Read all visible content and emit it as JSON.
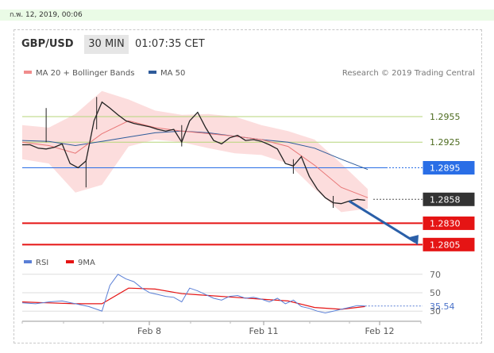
{
  "date_bar": "ก.พ. 12, 2019, 00:06",
  "header": {
    "symbol": "GBP/USD",
    "timeframe": "30 MIN",
    "time": "01:07:35 CET"
  },
  "legend": [
    {
      "label": "MA 20 + Bollinger Bands",
      "color": "#f08c8c"
    },
    {
      "label": "MA 50",
      "color": "#2e5b9a"
    }
  ],
  "credit": "Research © 2019 Trading Central",
  "chart_data": [
    {
      "type": "line",
      "title": "GBP/USD",
      "x_ticks": [
        "Feb 8",
        "Feb 11",
        "Feb 12"
      ],
      "series": [
        {
          "name": "price",
          "x": [
            0,
            3,
            6,
            9,
            12,
            15,
            18,
            21,
            24,
            27,
            30,
            33,
            36,
            39,
            42,
            45,
            48,
            51,
            54,
            57,
            60,
            63,
            66,
            69,
            72,
            75,
            78,
            81,
            84,
            87,
            90,
            93,
            96,
            99,
            102,
            105,
            108,
            111,
            114,
            117,
            120,
            123,
            126,
            129,
            132,
            135,
            138,
            141,
            144,
            147,
            150
          ],
          "y": [
            1.2922,
            1.2922,
            1.2918,
            1.2917,
            1.2919,
            1.2923,
            1.29,
            1.2895,
            1.2903,
            1.295,
            1.2972,
            1.2965,
            1.2957,
            1.295,
            1.2947,
            1.2945,
            1.2943,
            1.294,
            1.2938,
            1.294,
            1.2925,
            1.295,
            1.296,
            1.2942,
            1.2927,
            1.2923,
            1.293,
            1.2933,
            1.2927,
            1.2928,
            1.2926,
            1.2922,
            1.2917,
            1.29,
            1.2897,
            1.2908,
            1.2885,
            1.287,
            1.286,
            1.2854,
            1.2853,
            1.2856,
            1.2858,
            1.2857,
            1.2858,
            1.2858,
            1.2858,
            1.2858,
            1.2858,
            1.2858,
            1.2858
          ]
        },
        {
          "name": "MA 20",
          "x": [
            0,
            10,
            20,
            30,
            40,
            50,
            60,
            70,
            80,
            90,
            100,
            110,
            120,
            130
          ],
          "y": [
            1.2925,
            1.2921,
            1.2912,
            1.2935,
            1.295,
            1.2942,
            1.2938,
            1.2935,
            1.2932,
            1.2928,
            1.292,
            1.2898,
            1.2872,
            1.286
          ]
        },
        {
          "name": "MA 50",
          "x": [
            0,
            10,
            20,
            30,
            40,
            50,
            60,
            70,
            80,
            90,
            100,
            110,
            120,
            130
          ],
          "y": [
            1.2927,
            1.2926,
            1.2921,
            1.2926,
            1.2931,
            1.2936,
            1.2938,
            1.2936,
            1.2932,
            1.2928,
            1.2925,
            1.2918,
            1.2905,
            1.2893
          ]
        },
        {
          "name": "Bollinger upper",
          "x": [
            0,
            10,
            20,
            30,
            40,
            50,
            60,
            70,
            80,
            90,
            100,
            110,
            120,
            130
          ],
          "y": [
            1.2945,
            1.2942,
            1.2958,
            1.2985,
            1.2975,
            1.2962,
            1.2957,
            1.2958,
            1.2955,
            1.2945,
            1.2938,
            1.2928,
            1.29,
            1.287
          ]
        },
        {
          "name": "Bollinger lower",
          "x": [
            0,
            10,
            20,
            30,
            40,
            50,
            60,
            70,
            80,
            90,
            100,
            110,
            120,
            130
          ],
          "y": [
            1.2905,
            1.29,
            1.2866,
            1.2875,
            1.292,
            1.2928,
            1.2925,
            1.2918,
            1.2912,
            1.291,
            1.29,
            1.287,
            1.2843,
            1.2847
          ]
        }
      ],
      "levels": [
        {
          "value": 1.2955,
          "label": "1.2955",
          "color": "#b5d67a"
        },
        {
          "value": 1.2925,
          "label": "1.2925",
          "color": "#b5d67a"
        },
        {
          "value": 1.2895,
          "label": "1.2895",
          "color": "#2a6ee6"
        },
        {
          "value": 1.2858,
          "label": "1.2858",
          "color": "#333333"
        },
        {
          "value": 1.283,
          "label": "1.2830",
          "color": "#e51414"
        },
        {
          "value": 1.2805,
          "label": "1.2805",
          "color": "#e51414"
        }
      ],
      "ylim": [
        1.2796,
        1.2994
      ]
    },
    {
      "type": "line",
      "title": "RSI",
      "legend": [
        {
          "label": "RSI",
          "color": "#5a7fd6"
        },
        {
          "label": "9MA",
          "color": "#e51414"
        }
      ],
      "y_ticks": [
        "70",
        "50",
        "30"
      ],
      "last_value": "35.54",
      "series": [
        {
          "name": "RSI",
          "x": [
            0,
            5,
            10,
            15,
            20,
            25,
            30,
            33,
            36,
            39,
            42,
            45,
            48,
            51,
            54,
            57,
            60,
            63,
            66,
            69,
            72,
            75,
            78,
            81,
            84,
            87,
            90,
            93,
            96,
            99,
            102,
            105,
            108,
            111,
            114,
            117,
            120,
            123,
            126,
            129
          ],
          "y": [
            39,
            38,
            40,
            41,
            38,
            35,
            30,
            58,
            70,
            65,
            62,
            55,
            50,
            48,
            46,
            45,
            40,
            55,
            52,
            48,
            44,
            42,
            46,
            47,
            44,
            45,
            43,
            40,
            44,
            38,
            42,
            35,
            33,
            30,
            28,
            30,
            32,
            34,
            36,
            35.54
          ]
        },
        {
          "name": "9MA",
          "x": [
            0,
            10,
            20,
            30,
            40,
            50,
            60,
            70,
            80,
            90,
            100,
            110,
            120,
            129
          ],
          "y": [
            40,
            39,
            38,
            38,
            55,
            54,
            49,
            47,
            45,
            43,
            41,
            34,
            32,
            35
          ]
        }
      ],
      "ylim": [
        25,
        75
      ]
    }
  ]
}
